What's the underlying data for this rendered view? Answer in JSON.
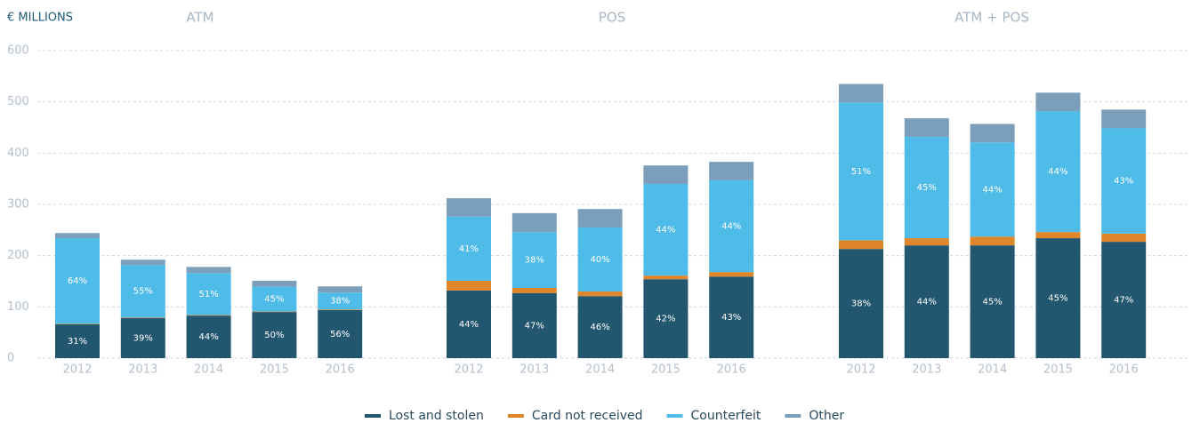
{
  "chart_data": [
    {
      "type": "bar",
      "stacked": true,
      "title": "ATM",
      "y_label": "€ MILLIONS",
      "ylim": [
        0,
        600
      ],
      "yticks": [
        0,
        100,
        200,
        300,
        400,
        500,
        600
      ],
      "grid": true,
      "legend": "bottom",
      "categories": [
        "2012",
        "2013",
        "2014",
        "2015",
        "2016"
      ],
      "series": [
        {
          "name": "Lost and stolen",
          "color": "#23566f",
          "values": [
            66,
            78,
            83,
            90,
            94
          ],
          "share_labels": [
            "31%",
            "39%",
            "44%",
            "50%",
            "56%"
          ]
        },
        {
          "name": "Card not received",
          "color": "#e0862a",
          "values": [
            1,
            1,
            1,
            1,
            1
          ]
        },
        {
          "name": "Counterfeit",
          "color": "#4fbbe8",
          "values": [
            167,
            103,
            82,
            48,
            33
          ],
          "share_labels": [
            "64%",
            "55%",
            "51%",
            "45%",
            "38%"
          ]
        },
        {
          "name": "Other",
          "color": "#7b9fba",
          "values": [
            10,
            10,
            12,
            12,
            12
          ]
        }
      ]
    },
    {
      "type": "bar",
      "stacked": true,
      "title": "POS",
      "categories": [
        "2012",
        "2013",
        "2014",
        "2015",
        "2016"
      ],
      "series": [
        {
          "name": "Lost and stolen",
          "color": "#23566f",
          "values": [
            132,
            127,
            121,
            154,
            159
          ],
          "share_labels": [
            "44%",
            "47%",
            "46%",
            "42%",
            "43%"
          ]
        },
        {
          "name": "Card not received",
          "color": "#e0862a",
          "values": [
            19,
            10,
            9,
            7,
            9
          ]
        },
        {
          "name": "Counterfeit",
          "color": "#4fbbe8",
          "values": [
            125,
            109,
            125,
            179,
            179
          ],
          "share_labels": [
            "41%",
            "38%",
            "40%",
            "44%",
            "44%"
          ]
        },
        {
          "name": "Other",
          "color": "#7b9fba",
          "values": [
            36,
            37,
            36,
            36,
            36
          ]
        }
      ]
    },
    {
      "type": "bar",
      "stacked": true,
      "title": "ATM + POS",
      "categories": [
        "2012",
        "2013",
        "2014",
        "2015",
        "2016"
      ],
      "series": [
        {
          "name": "Lost and stolen",
          "color": "#23566f",
          "values": [
            213,
            220,
            220,
            234,
            227
          ],
          "share_labels": [
            "38%",
            "44%",
            "45%",
            "45%",
            "47%"
          ]
        },
        {
          "name": "Card not received",
          "color": "#e0862a",
          "values": [
            17,
            14,
            17,
            12,
            16
          ]
        },
        {
          "name": "Counterfeit",
          "color": "#4fbbe8",
          "values": [
            269,
            198,
            184,
            236,
            206
          ],
          "share_labels": [
            "51%",
            "45%",
            "44%",
            "44%",
            "43%"
          ]
        },
        {
          "name": "Other",
          "color": "#7b9fba",
          "values": [
            36,
            36,
            36,
            36,
            36
          ]
        }
      ]
    }
  ]
}
